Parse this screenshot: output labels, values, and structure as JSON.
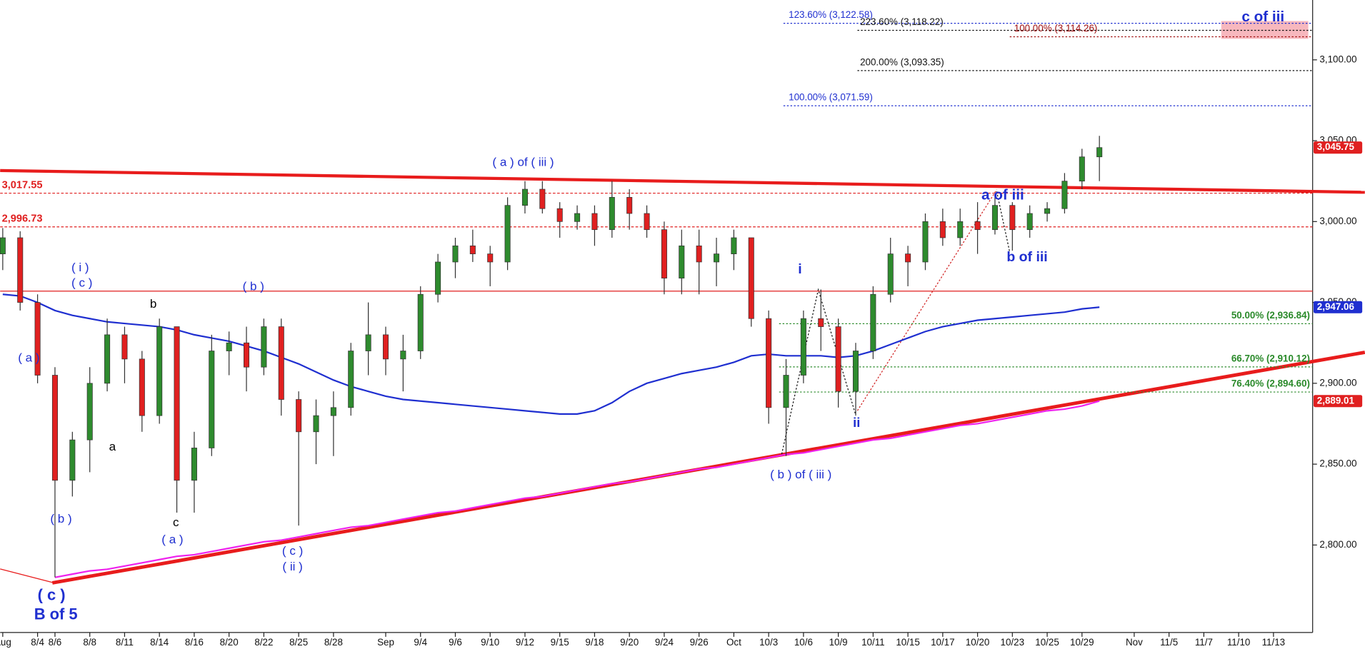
{
  "chart_data": {
    "type": "candlestick",
    "categories": [
      "Aug",
      null,
      "8/4",
      "8/6",
      null,
      "8/8",
      null,
      "8/11",
      null,
      "8/14",
      null,
      "8/16",
      null,
      "8/20",
      null,
      "8/22",
      null,
      "8/25",
      null,
      "8/28",
      null,
      null,
      "Sep",
      null,
      "9/4",
      null,
      "9/6",
      null,
      "9/10",
      null,
      "9/12",
      null,
      "9/15",
      null,
      "9/18",
      null,
      "9/20",
      null,
      "9/24",
      null,
      "9/26",
      null,
      "Oct",
      null,
      "10/3",
      null,
      "10/6",
      null,
      "10/9",
      null,
      "10/11",
      null,
      "10/15",
      null,
      "10/17",
      null,
      "10/20",
      null,
      "10/23",
      null,
      "10/25",
      null,
      "10/29",
      null,
      null,
      "Nov",
      null,
      "11/5",
      null,
      "11/7",
      null,
      "11/10",
      null,
      "11/13",
      null
    ],
    "open": [
      2980,
      2990,
      2950,
      2905,
      2840,
      2865,
      2900,
      2930,
      2915,
      2880,
      2935,
      2840,
      2860,
      2920,
      2925,
      2910,
      2935,
      2890,
      2870,
      2880,
      2885,
      2920,
      2930,
      2915,
      2920,
      2955,
      2975,
      2985,
      2980,
      2975,
      3010,
      3020,
      3008,
      3000,
      3005,
      2995,
      3015,
      3005,
      2995,
      2965,
      2985,
      2975,
      2980,
      2990,
      2940,
      2885,
      2905,
      2940,
      2935,
      2895,
      2920,
      2955,
      2980,
      2975,
      3000,
      2990,
      3000,
      2995,
      3010,
      2995,
      3005,
      3008,
      3025,
      3040,
      null,
      null,
      null,
      null,
      null,
      null,
      null,
      null,
      null,
      null,
      null
    ],
    "high": [
      2996,
      2994,
      2955,
      2910,
      2870,
      2910,
      2940,
      2935,
      2920,
      2940,
      2935,
      2870,
      2930,
      2932,
      2935,
      2940,
      2940,
      2895,
      2890,
      2895,
      2925,
      2950,
      2935,
      2930,
      2960,
      2980,
      2990,
      2995,
      2985,
      3015,
      3025,
      3025,
      3012,
      3010,
      3010,
      3025,
      3020,
      3010,
      3000,
      2995,
      2995,
      2990,
      2995,
      2990,
      2945,
      2915,
      2945,
      2958,
      2940,
      2925,
      2960,
      2990,
      2985,
      3005,
      3008,
      3008,
      3012,
      3015,
      3012,
      3010,
      3012,
      3030,
      3045,
      3053,
      null,
      null,
      null,
      null,
      null,
      null,
      null,
      null,
      null,
      null,
      null
    ],
    "low": [
      2970,
      2945,
      2900,
      2780,
      2830,
      2845,
      2895,
      2900,
      2870,
      2875,
      2820,
      2820,
      2855,
      2905,
      2895,
      2905,
      2880,
      2812,
      2850,
      2855,
      2880,
      2905,
      2905,
      2895,
      2915,
      2950,
      2965,
      2975,
      2960,
      2970,
      3005,
      3005,
      2990,
      2995,
      2985,
      2990,
      2995,
      2990,
      2955,
      2955,
      2955,
      2960,
      2970,
      2935,
      2875,
      2855,
      2900,
      2920,
      2885,
      2880,
      2915,
      2950,
      2960,
      2970,
      2985,
      2985,
      2980,
      2992,
      2982,
      2990,
      3000,
      3005,
      3020,
      3025,
      null,
      null,
      null,
      null,
      null,
      null,
      null,
      null,
      null,
      null,
      null
    ],
    "close": [
      2990,
      2950,
      2905,
      2840,
      2865,
      2900,
      2930,
      2915,
      2880,
      2935,
      2840,
      2860,
      2920,
      2925,
      2910,
      2935,
      2890,
      2870,
      2880,
      2885,
      2920,
      2930,
      2915,
      2920,
      2955,
      2975,
      2985,
      2980,
      2975,
      3010,
      3020,
      3008,
      3000,
      3005,
      2995,
      3015,
      3005,
      2995,
      2965,
      2985,
      2975,
      2980,
      2990,
      2940,
      2885,
      2905,
      2940,
      2935,
      2895,
      2920,
      2955,
      2980,
      2975,
      3000,
      2990,
      3000,
      2995,
      3010,
      2995,
      3005,
      3008,
      3025,
      3040,
      3045.75,
      null,
      null,
      null,
      null,
      null,
      null,
      null,
      null,
      null,
      null,
      null
    ],
    "up_color": "#2e8b2e",
    "down_color": "#e02020",
    "series": [
      {
        "color": "#1f2fd0",
        "values": [
          2955,
          2954,
          2950,
          2945,
          2942,
          2940,
          2938,
          2937,
          2936,
          2935,
          2933,
          2930,
          2928,
          2926,
          2923,
          2920,
          2916,
          2912,
          2907,
          2902,
          2898,
          2895,
          2892,
          2890,
          2889,
          2888,
          2887,
          2886,
          2885,
          2884,
          2883,
          2882,
          2881,
          2881,
          2883,
          2888,
          2895,
          2900,
          2903,
          2906,
          2908,
          2910,
          2913,
          2917,
          2918,
          2917,
          2917,
          2917,
          2916,
          2917,
          2920,
          2924,
          2928,
          2932,
          2935,
          2937,
          2939,
          2940,
          2941,
          2942,
          2943,
          2944,
          2946,
          2947.06,
          null,
          null,
          null,
          null,
          null,
          null,
          null,
          null,
          null,
          null,
          null
        ]
      },
      {
        "color": "#ee22ee",
        "values": [
          null,
          null,
          null,
          2780,
          2782,
          2784,
          2785,
          2787,
          2789,
          2791,
          2793,
          2794,
          2796,
          2798,
          2800,
          2802,
          2803,
          2805,
          2807,
          2809,
          2811,
          2812,
          2814,
          2816,
          2818,
          2820,
          2821,
          2823,
          2825,
          2827,
          2829,
          2830,
          2832,
          2834,
          2836,
          2838,
          2839,
          2841,
          2843,
          2845,
          2847,
          2848,
          2850,
          2852,
          2854,
          2856,
          2857,
          2859,
          2861,
          2863,
          2865,
          2866,
          2868,
          2870,
          2872,
          2874,
          2875,
          2877,
          2879,
          2881,
          2883,
          2884,
          2886,
          2889.01,
          null,
          null,
          null,
          null,
          null,
          null,
          null,
          null,
          null,
          null,
          null
        ]
      }
    ],
    "ylim": [
      2747,
      3137
    ],
    "yticks": [
      {
        "value": 2800,
        "label": "2,800.00"
      },
      {
        "value": 2850,
        "label": "2,850.00"
      },
      {
        "value": 2900,
        "label": "2,900.00"
      },
      {
        "value": 2950,
        "label": "2,950.00"
      },
      {
        "value": 3000,
        "label": "3,000.00"
      },
      {
        "value": 3050,
        "label": "3,050.00"
      },
      {
        "value": 3100,
        "label": "3,100.00"
      }
    ],
    "price_tags": [
      {
        "value": 3045.75,
        "label": "3,045.75",
        "color": "#e02020"
      },
      {
        "value": 2947.06,
        "label": "2,947.06",
        "color": "#1f2fd0"
      },
      {
        "value": 2889.01,
        "label": "2,889.01",
        "color": "#e02020"
      }
    ],
    "levels": [
      {
        "value": 3017.55,
        "label": "3,017.55",
        "color": "#e02020"
      },
      {
        "value": 2996.73,
        "label": "2,996.73",
        "color": "#e02020"
      }
    ],
    "support_line": {
      "value": 2957,
      "color": "#e02020"
    },
    "fib_levels": [
      {
        "value": 3122.58,
        "label": "123.60% (3,122.58)",
        "color": "#1f2fd0"
      },
      {
        "value": 3118.22,
        "label": "223.60% (3,118.22)",
        "color": "#111111"
      },
      {
        "value": 3114.26,
        "label": "100.00% (3,114.26)",
        "color": "#a01010"
      },
      {
        "value": 3093.35,
        "label": "200.00% (3,093.35)",
        "color": "#111111"
      },
      {
        "value": 3071.59,
        "label": "100.00% (3,071.59)",
        "color": "#1f2fd0"
      },
      {
        "value": 2936.84,
        "label": "50.00% (2,936.84)",
        "color": "#2a8a2a"
      },
      {
        "value": 2910.12,
        "label": "66.70% (2,910.12)",
        "color": "#2a8a2a"
      },
      {
        "value": 2894.6,
        "label": "76.40% (2,894.60)",
        "color": "#2a8a2a"
      }
    ],
    "target_zone": {
      "range": [
        3113,
        3124
      ],
      "color": "#f4a0a8"
    },
    "wave_labels": [
      {
        "text": "( a ) of ( iii )",
        "color": "#1f2fd0"
      },
      {
        "text": "( i )",
        "color": "#1f2fd0"
      },
      {
        "text": "( c )",
        "color": "#1f2fd0"
      },
      {
        "text": "( b )",
        "color": "#1f2fd0"
      },
      {
        "text": "b",
        "color": "#000000"
      },
      {
        "text": "( a )",
        "color": "#1f2fd0"
      },
      {
        "text": "a",
        "color": "#000000"
      },
      {
        "text": "( b )",
        "color": "#1f2fd0"
      },
      {
        "text": "c",
        "color": "#000000"
      },
      {
        "text": "( a )",
        "color": "#1f2fd0"
      },
      {
        "text": "( c )",
        "color": "#1f2fd0"
      },
      {
        "text": "( ii )",
        "color": "#1f2fd0"
      },
      {
        "text": "( c )",
        "color": "#1f2fd0"
      },
      {
        "text": "B of 5",
        "color": "#1f2fd0"
      },
      {
        "text": "i",
        "color": "#1f2fd0"
      },
      {
        "text": "ii",
        "color": "#1f2fd0"
      },
      {
        "text": "( b ) of ( iii )",
        "color": "#1f2fd0"
      },
      {
        "text": "a of iii",
        "color": "#1f2fd0"
      },
      {
        "text": "b of iii",
        "color": "#1f2fd0"
      },
      {
        "text": "c of iii",
        "color": "#1f2fd0"
      }
    ]
  }
}
